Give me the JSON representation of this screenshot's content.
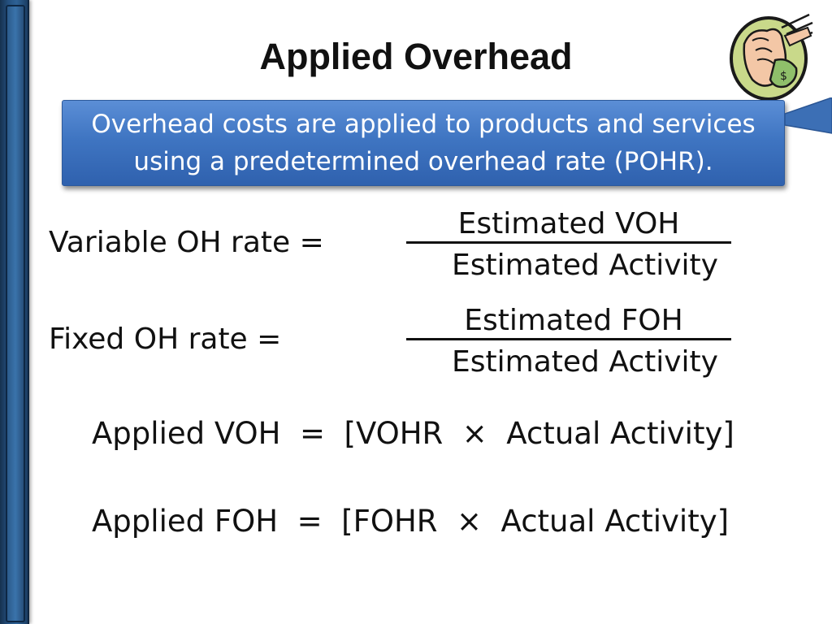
{
  "slide": {
    "title": "Applied Overhead",
    "banner_text_line1": "Overhead costs are applied to products and services",
    "banner_text_line2": "using a predetermined overhead rate (POHR).",
    "variable_rate": {
      "label": "Variable OH rate   =",
      "numerator": "Estimated VOH",
      "denominator": "Estimated Activity"
    },
    "fixed_rate": {
      "label": "Fixed OH rate  =",
      "numerator": "Estimated FOH",
      "denominator": "Estimated Activity"
    },
    "applied_voh": "Applied VOH  =  [VOHR  ×  Actual Activity]",
    "applied_foh": "Applied FOH  =  [FOHR  ×  Actual Activity]"
  },
  "colors": {
    "banner": "#3f75c2",
    "side_bar": "#24507f",
    "text": "#111111"
  },
  "icons": [
    "money-hand-clipart-icon",
    "banner-arrow-icon"
  ]
}
